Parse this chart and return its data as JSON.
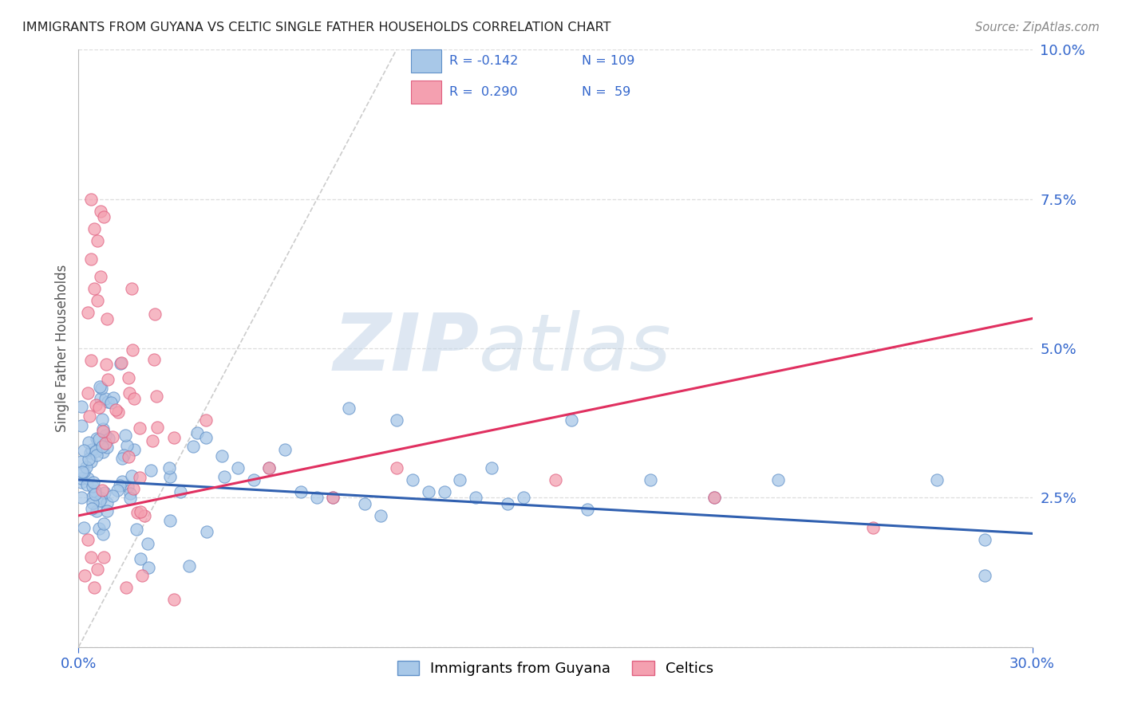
{
  "title": "IMMIGRANTS FROM GUYANA VS CELTIC SINGLE FATHER HOUSEHOLDS CORRELATION CHART",
  "source": "Source: ZipAtlas.com",
  "ylabel": "Single Father Households",
  "legend_labels": [
    "Immigrants from Guyana",
    "Celtics"
  ],
  "blue_R": -0.142,
  "blue_N": 109,
  "pink_R": 0.29,
  "pink_N": 59,
  "blue_color": "#a8c8e8",
  "pink_color": "#f4a0b0",
  "blue_edge_color": "#6090c8",
  "pink_edge_color": "#e06080",
  "blue_line_color": "#3060b0",
  "pink_line_color": "#e03060",
  "diag_color": "#cccccc",
  "xlim": [
    0.0,
    0.3
  ],
  "ylim": [
    0.0,
    0.1
  ],
  "xtick_positions": [
    0.0,
    0.3
  ],
  "xtick_labels": [
    "0.0%",
    "30.0%"
  ],
  "ytick_positions": [
    0.0,
    0.025,
    0.05,
    0.075,
    0.1
  ],
  "ytick_labels": [
    "",
    "2.5%",
    "5.0%",
    "7.5%",
    "10.0%"
  ],
  "watermark_zip": "ZIP",
  "watermark_atlas": "atlas",
  "grid_color": "#dddddd",
  "title_color": "#222222",
  "source_color": "#888888",
  "legend_text_color": "#3366cc",
  "axis_label_color": "#555555",
  "tick_color": "#3366cc",
  "blue_line_x": [
    0.0,
    0.3
  ],
  "blue_line_y": [
    0.028,
    0.019
  ],
  "pink_line_x": [
    0.0,
    0.3
  ],
  "pink_line_y": [
    0.022,
    0.055
  ],
  "diag_line_x": [
    0.0,
    0.1
  ],
  "diag_line_y": [
    0.0,
    0.1
  ]
}
